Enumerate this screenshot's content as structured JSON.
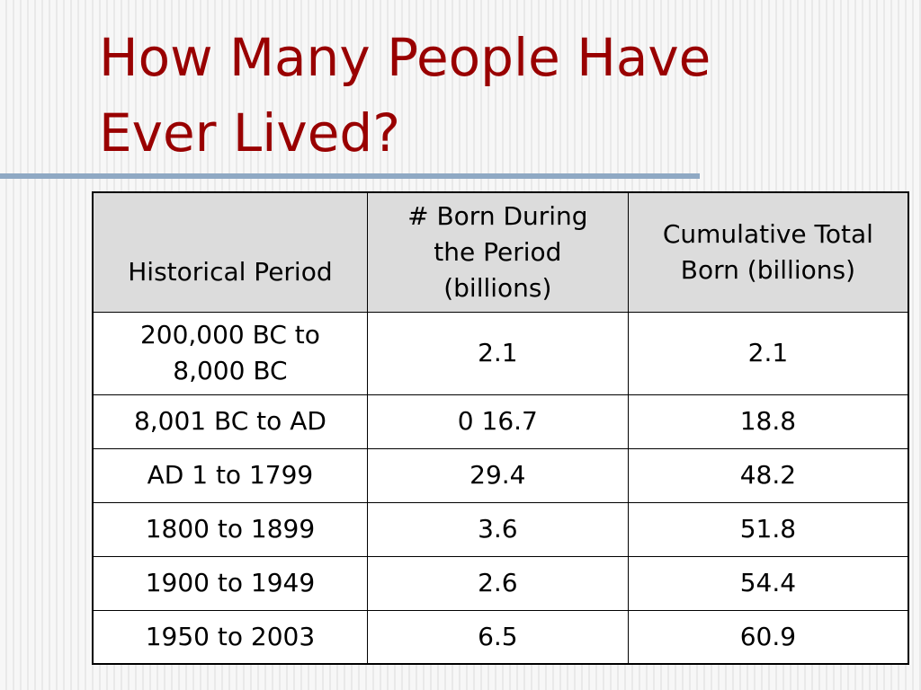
{
  "slide": {
    "title_line1": "How Many People Have",
    "title_line2": "Ever Lived?"
  },
  "table": {
    "headers": {
      "period": "Historical Period",
      "born_line1": "# Born During",
      "born_line2": "the Period",
      "born_line3": "(billions)",
      "total_line1": "Cumulative Total",
      "total_line2": "Born (billions)"
    },
    "rows": [
      {
        "period_line1": "200,000 BC to",
        "period_line2": "8,000 BC",
        "born": "2.1",
        "total": "2.1"
      },
      {
        "period": "8,001 BC to AD",
        "born": "0 16.7",
        "total": "18.8"
      },
      {
        "period": "AD 1 to 1799",
        "born": "29.4",
        "total": "48.2"
      },
      {
        "period": "1800 to 1899",
        "born": "3.6",
        "total": "51.8"
      },
      {
        "period": "1900 to 1949",
        "born": "2.6",
        "total": "54.4"
      },
      {
        "period": "1950 to 2003",
        "born": "6.5",
        "total": "60.9"
      }
    ]
  },
  "colors": {
    "title": "#990000",
    "rule": "#8fa9c4",
    "header_bg": "#dcdcdc"
  }
}
